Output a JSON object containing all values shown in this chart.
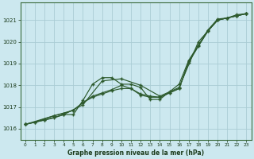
{
  "title": "Graphe pression niveau de la mer (hPa)",
  "bg_color": "#cce8ef",
  "grid_color": "#aaccd4",
  "line_color": "#2d5a2d",
  "xlim": [
    -0.5,
    23.5
  ],
  "ylim": [
    1015.5,
    1021.8
  ],
  "yticks": [
    1016,
    1017,
    1018,
    1019,
    1020,
    1021
  ],
  "xticks": [
    0,
    1,
    2,
    3,
    4,
    5,
    6,
    7,
    8,
    9,
    10,
    11,
    12,
    13,
    14,
    15,
    16,
    17,
    18,
    19,
    20,
    21,
    22,
    23
  ],
  "line1": {
    "x": [
      0,
      1,
      2,
      3,
      4,
      5,
      6,
      7,
      8,
      9,
      10,
      11,
      12,
      13,
      14,
      15,
      16,
      17,
      18,
      19,
      20,
      21,
      22,
      23
    ],
    "y": [
      1016.2,
      1016.3,
      1016.4,
      1016.5,
      1016.65,
      1016.65,
      1017.3,
      1018.05,
      1018.35,
      1018.35,
      1018.05,
      1018.05,
      1017.9,
      1017.35,
      1017.35,
      1017.7,
      1018.05,
      1019.15,
      1019.85,
      1020.55,
      1021.05,
      1021.1,
      1021.25,
      1021.3
    ]
  },
  "line2": {
    "x": [
      0,
      2,
      4,
      6,
      8,
      10,
      12,
      14,
      16,
      18,
      20,
      22,
      23
    ],
    "y": [
      1016.2,
      1016.4,
      1016.65,
      1017.1,
      1018.2,
      1018.3,
      1018.0,
      1017.5,
      1017.9,
      1020.0,
      1021.0,
      1021.2,
      1021.3
    ]
  },
  "line3": {
    "x": [
      0,
      1,
      2,
      3,
      4,
      5,
      6,
      7,
      8,
      9,
      10,
      11,
      12,
      13,
      14,
      15,
      16,
      17,
      18,
      19,
      20,
      21,
      22,
      23
    ],
    "y": [
      1016.2,
      1016.3,
      1016.45,
      1016.6,
      1016.7,
      1016.85,
      1017.2,
      1017.45,
      1017.6,
      1017.75,
      1017.85,
      1017.85,
      1017.6,
      1017.5,
      1017.45,
      1017.65,
      1017.85,
      1019.05,
      1019.8,
      1020.5,
      1021.0,
      1021.1,
      1021.2,
      1021.3
    ]
  },
  "line4": {
    "x": [
      0,
      3,
      5,
      6,
      7,
      8,
      9,
      10,
      11,
      12,
      13,
      14,
      15,
      16,
      17,
      19,
      20,
      21,
      22,
      23
    ],
    "y": [
      1016.2,
      1016.6,
      1016.85,
      1017.2,
      1017.5,
      1017.65,
      1017.8,
      1018.0,
      1017.85,
      1017.55,
      1017.45,
      1017.45,
      1017.65,
      1017.85,
      1019.1,
      1020.5,
      1021.0,
      1021.1,
      1021.2,
      1021.3
    ]
  }
}
